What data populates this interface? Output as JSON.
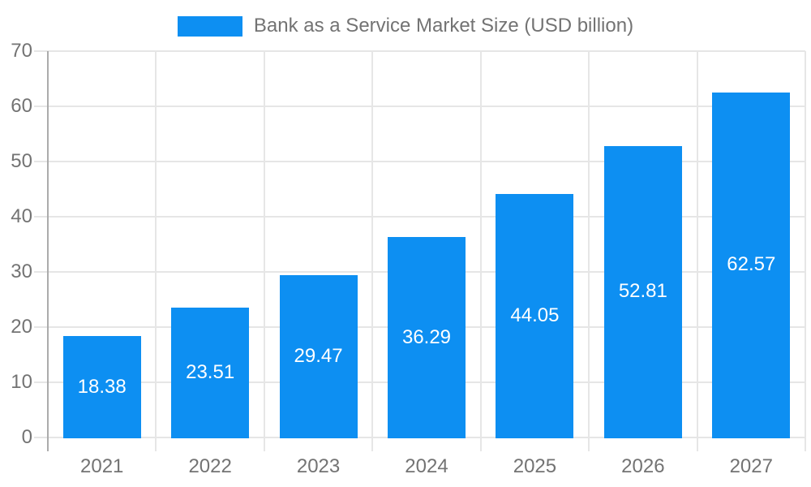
{
  "legend": {
    "label": "Bank as a Service Market Size (USD billion)"
  },
  "chart_data": {
    "type": "bar",
    "title": "Bank as a Service Market Size (USD billion)",
    "categories": [
      "2021",
      "2022",
      "2023",
      "2024",
      "2025",
      "2026",
      "2027"
    ],
    "values": [
      18.38,
      23.51,
      29.47,
      36.29,
      44.05,
      52.81,
      62.57
    ],
    "value_labels": [
      "18.38",
      "23.51",
      "29.47",
      "36.29",
      "44.05",
      "52.81",
      "62.57"
    ],
    "xlabel": "",
    "ylabel": "",
    "ylim": [
      0,
      70
    ],
    "yticks": [
      0,
      10,
      20,
      30,
      40,
      50,
      60,
      70
    ],
    "grid": "both",
    "legend_position": "top-center",
    "bar_label_position": "inside-middle"
  },
  "colors": {
    "bar": "#0d8ff2",
    "grid": "#e6e6e6",
    "axis_line": "#ababab",
    "text": "#737373",
    "bar_label": "#ffffff",
    "background": "#ffffff"
  }
}
